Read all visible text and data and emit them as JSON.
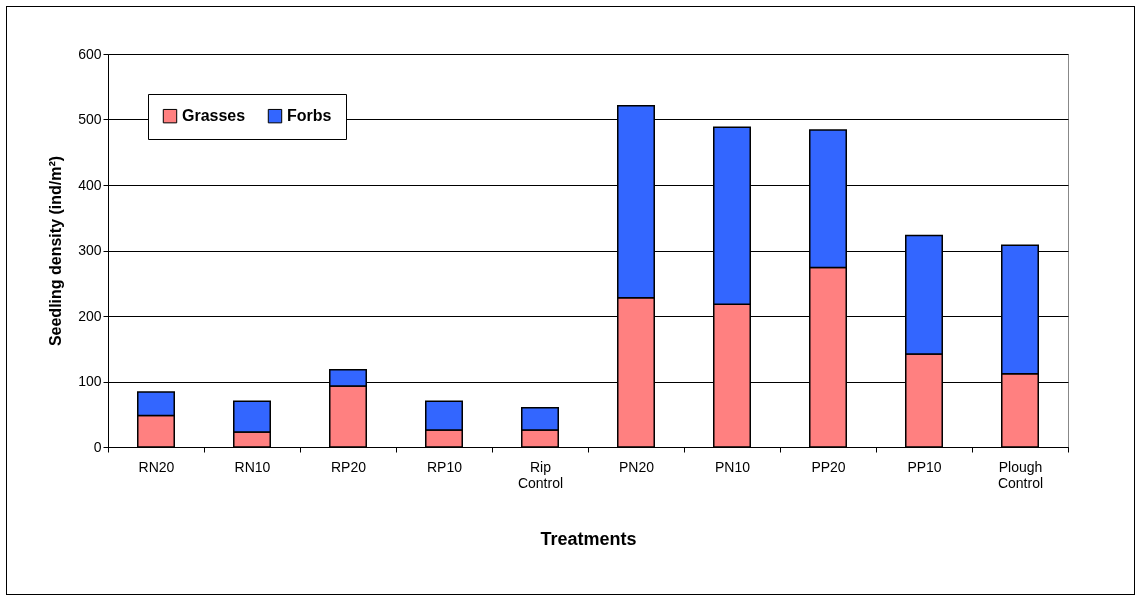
{
  "chart_data": {
    "type": "bar",
    "xlabel": "Treatments",
    "ylabel": "Seedling density (ind/m²)",
    "categories": [
      "RN20",
      "RN10",
      "RP20",
      "RP10",
      "Rip Control",
      "PN20",
      "PN10",
      "PP20",
      "PP10",
      "Plough Control"
    ],
    "series": [
      {
        "name": "Grasses",
        "color": "#ff8080",
        "values": [
          48,
          23,
          93,
          26,
          26,
          228,
          218,
          274,
          142,
          112
        ]
      },
      {
        "name": "Forbs",
        "color": "#3366ff",
        "values": [
          36,
          47,
          25,
          44,
          34,
          293,
          270,
          210,
          181,
          196
        ]
      }
    ],
    "stacked": true,
    "ylim": [
      0,
      600
    ],
    "yticks": [
      0,
      100,
      200,
      300,
      400,
      500,
      600
    ],
    "grid": "y",
    "legend": "top left"
  }
}
